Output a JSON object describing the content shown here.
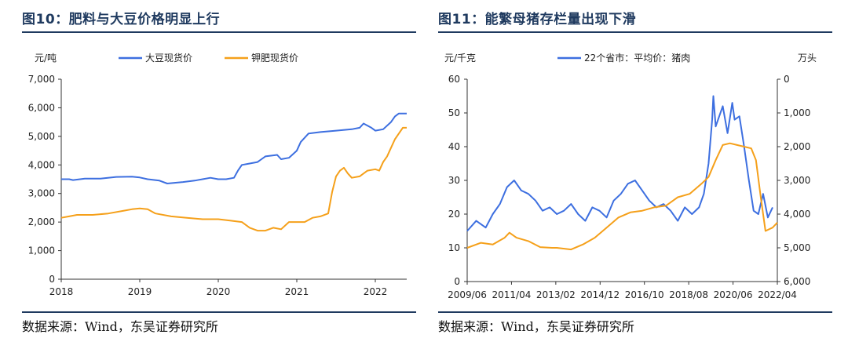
{
  "left_panel": {
    "title": "图10：肥料与大豆价格明显上行",
    "source": "数据来源：Wind，东吴证券研究所"
  },
  "right_panel": {
    "title": "图11：能繁母猪存栏量出现下滑",
    "source": "数据来源：Wind，东吴证券研究所"
  },
  "chart_data": [
    {
      "type": "line",
      "title": "图10：肥料与大豆价格明显上行",
      "ylabel": "元/吨",
      "xlabel": "",
      "ylim": [
        0,
        7000
      ],
      "yticks": [
        "0",
        "1,000",
        "2,000",
        "3,000",
        "4,000",
        "5,000",
        "6,000",
        "7,000"
      ],
      "xticks": [
        "2018",
        "2019",
        "2020",
        "2021",
        "2022"
      ],
      "xlim": [
        2018.0,
        2022.4
      ],
      "grid": false,
      "legend_position": "top",
      "series": [
        {
          "name": "大豆现货价",
          "color": "#3d6fe0",
          "x": [
            2018.0,
            2018.1,
            2018.15,
            2018.3,
            2018.5,
            2018.7,
            2018.9,
            2019.0,
            2019.1,
            2019.25,
            2019.35,
            2019.55,
            2019.7,
            2019.8,
            2019.9,
            2020.0,
            2020.1,
            2020.2,
            2020.25,
            2020.3,
            2020.4,
            2020.5,
            2020.55,
            2020.6,
            2020.75,
            2020.8,
            2020.9,
            2021.0,
            2021.05,
            2021.15,
            2021.3,
            2021.5,
            2021.7,
            2021.8,
            2021.85,
            2021.95,
            2022.0,
            2022.1,
            2022.2,
            2022.25,
            2022.3,
            2022.35,
            2022.4
          ],
          "values": [
            3500,
            3500,
            3470,
            3520,
            3520,
            3580,
            3590,
            3560,
            3500,
            3450,
            3350,
            3400,
            3450,
            3500,
            3550,
            3500,
            3500,
            3550,
            3800,
            4000,
            4050,
            4100,
            4200,
            4300,
            4350,
            4200,
            4250,
            4500,
            4800,
            5100,
            5150,
            5200,
            5250,
            5300,
            5450,
            5300,
            5200,
            5250,
            5500,
            5700,
            5800,
            5800,
            5800
          ]
        },
        {
          "name": "钾肥现货价",
          "color": "#f5a01a",
          "x": [
            2018.0,
            2018.1,
            2018.2,
            2018.4,
            2018.6,
            2018.8,
            2018.9,
            2019.0,
            2019.1,
            2019.2,
            2019.4,
            2019.6,
            2019.8,
            2020.0,
            2020.15,
            2020.3,
            2020.4,
            2020.5,
            2020.6,
            2020.7,
            2020.8,
            2020.9,
            2021.0,
            2021.1,
            2021.2,
            2021.3,
            2021.4,
            2021.45,
            2021.5,
            2021.55,
            2021.6,
            2021.65,
            2021.7,
            2021.8,
            2021.9,
            2022.0,
            2022.05,
            2022.1,
            2022.15,
            2022.2,
            2022.25,
            2022.3,
            2022.35,
            2022.4
          ],
          "values": [
            2150,
            2200,
            2250,
            2250,
            2300,
            2400,
            2450,
            2480,
            2450,
            2300,
            2200,
            2150,
            2100,
            2100,
            2050,
            2000,
            1800,
            1700,
            1700,
            1800,
            1750,
            2000,
            2000,
            2000,
            2150,
            2200,
            2300,
            3050,
            3600,
            3800,
            3900,
            3700,
            3550,
            3600,
            3800,
            3850,
            3800,
            4100,
            4300,
            4600,
            4900,
            5100,
            5300,
            5300
          ]
        }
      ]
    },
    {
      "type": "line",
      "title": "图11：能繁母猪存栏量出现下滑",
      "ylabel": "元/千克",
      "y2label": "万头",
      "xlabel": "",
      "ylim": [
        0,
        60
      ],
      "yticks": [
        "0",
        "10",
        "20",
        "30",
        "40",
        "50",
        "60"
      ],
      "y2lim": [
        6000,
        0
      ],
      "y2ticks": [
        "0",
        "1,000",
        "2,000",
        "3,000",
        "4,000",
        "5,000",
        "6,000"
      ],
      "y2_inverted": true,
      "xticks": [
        "2009/06",
        "2011/04",
        "2013/02",
        "2014/12",
        "2016/10",
        "2018/08",
        "2020/06",
        "2022/04"
      ],
      "xlim": [
        2009.42,
        2022.5
      ],
      "grid": false,
      "legend_position": "top",
      "series": [
        {
          "name": "22个省市：平均价：猪肉",
          "axis": "left",
          "color": "#3d6fe0",
          "x": [
            2009.42,
            2009.8,
            2010.2,
            2010.5,
            2010.8,
            2011.1,
            2011.4,
            2011.7,
            2012.0,
            2012.3,
            2012.6,
            2012.9,
            2013.2,
            2013.5,
            2013.8,
            2014.1,
            2014.4,
            2014.7,
            2015.0,
            2015.3,
            2015.6,
            2015.9,
            2016.2,
            2016.5,
            2016.8,
            2017.1,
            2017.4,
            2017.7,
            2018.0,
            2018.3,
            2018.6,
            2018.9,
            2019.2,
            2019.4,
            2019.6,
            2019.75,
            2019.8,
            2019.9,
            2020.0,
            2020.2,
            2020.4,
            2020.6,
            2020.7,
            2020.9,
            2021.1,
            2021.3,
            2021.5,
            2021.7,
            2021.9,
            2022.1,
            2022.3
          ],
          "values": [
            15,
            18,
            16,
            20,
            23,
            28,
            30,
            27,
            26,
            24,
            21,
            22,
            20,
            21,
            23,
            20,
            18,
            22,
            21,
            19,
            24,
            26,
            29,
            30,
            27,
            24,
            22,
            23,
            21,
            18,
            22,
            20,
            22,
            26,
            35,
            48,
            55,
            46,
            48,
            52,
            44,
            53,
            48,
            49,
            40,
            30,
            21,
            20,
            26,
            19,
            22
          ]
        },
        {
          "name": "",
          "axis": "right",
          "color": "#f5a01a",
          "x": [
            2009.42,
            2010.0,
            2010.5,
            2011.0,
            2011.2,
            2011.5,
            2012.0,
            2012.5,
            2013.0,
            2013.2,
            2013.8,
            2014.3,
            2014.8,
            2015.3,
            2015.8,
            2016.3,
            2016.8,
            2017.3,
            2017.8,
            2018.3,
            2018.8,
            2019.3,
            2019.6,
            2019.9,
            2020.2,
            2020.5,
            2020.8,
            2021.1,
            2021.4,
            2021.6,
            2021.8,
            2022.0,
            2022.3,
            2022.5
          ],
          "values": [
            5000,
            4850,
            4900,
            4700,
            4550,
            4700,
            4800,
            4980,
            5000,
            5000,
            5050,
            4900,
            4700,
            4400,
            4100,
            3950,
            3900,
            3800,
            3750,
            3500,
            3400,
            3100,
            2900,
            2400,
            1950,
            1900,
            1950,
            2000,
            2050,
            2400,
            3500,
            4500,
            4400,
            4250
          ]
        }
      ]
    }
  ]
}
